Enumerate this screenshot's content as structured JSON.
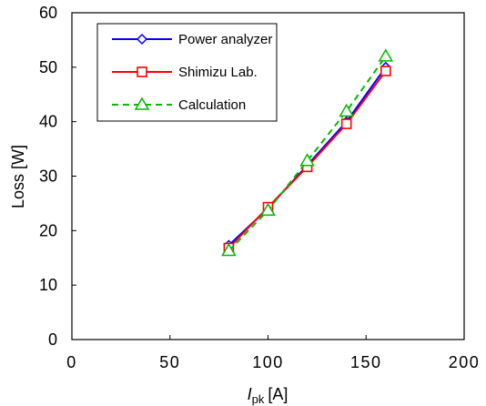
{
  "chart_data": {
    "type": "line",
    "xlabel_italic": "I",
    "xlabel_sub": "pk",
    "xlabel_unit": "[A]",
    "ylabel": "Loss [W]",
    "xlim": [
      0,
      200
    ],
    "ylim": [
      0,
      60
    ],
    "x_ticks": [
      "0",
      "50",
      "100",
      "150",
      "200"
    ],
    "y_ticks": [
      "0",
      "10",
      "20",
      "30",
      "40",
      "50",
      "60"
    ],
    "x_tick_values": [
      0,
      50,
      100,
      150,
      200
    ],
    "y_tick_values": [
      0,
      10,
      20,
      30,
      40,
      50,
      60
    ],
    "grid": false,
    "legend_position": "top-left",
    "x": [
      80,
      100,
      120,
      140,
      160
    ],
    "series": [
      {
        "name": "Power analyzer",
        "values": [
          17.3,
          24.1,
          32.0,
          40.0,
          50.0
        ],
        "color": "#0000ff",
        "marker": "diamond",
        "dash": "solid"
      },
      {
        "name": "Shimizu Lab.",
        "values": [
          16.8,
          24.3,
          31.7,
          39.6,
          49.3
        ],
        "color": "#ff0000",
        "marker": "square",
        "dash": "solid"
      },
      {
        "name": "Calculation",
        "values": [
          16.3,
          23.7,
          32.8,
          41.9,
          52.0
        ],
        "color": "#00bb00",
        "marker": "triangle",
        "dash": "dashed"
      }
    ]
  }
}
